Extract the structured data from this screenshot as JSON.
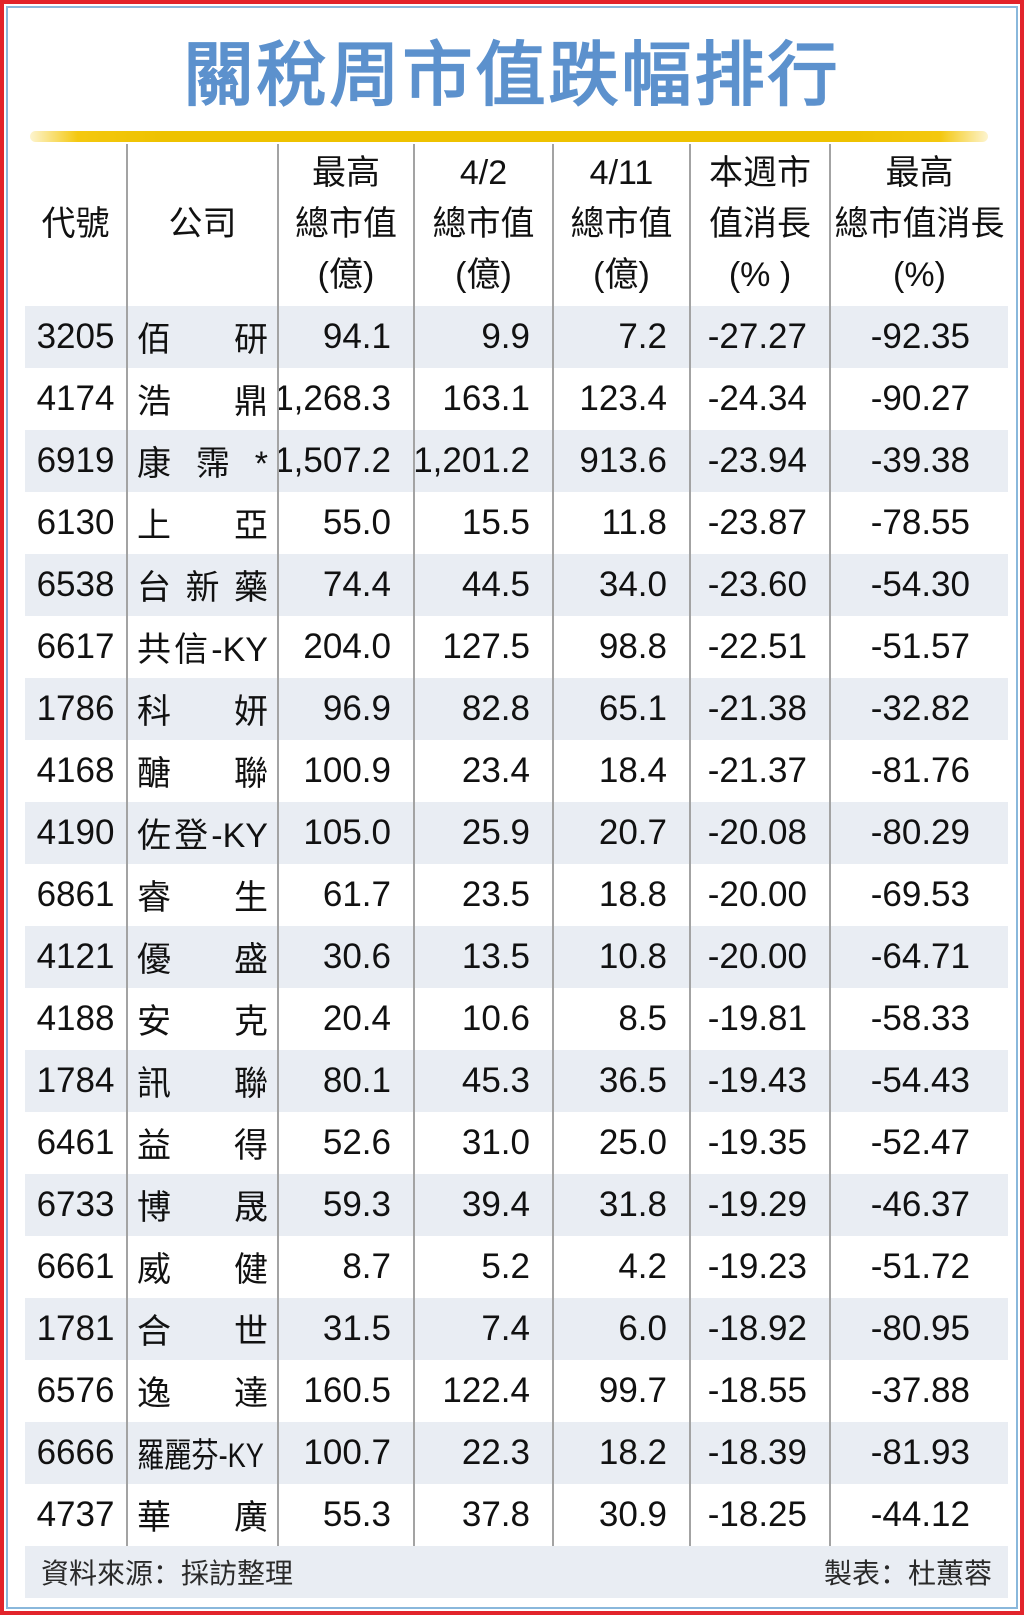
{
  "title": "關稅周市值跌幅排行",
  "colors": {
    "frame_red": "#e2242b",
    "frame_blue": "#8ab8dc",
    "title_blue": "#5c91cd",
    "gold": "#eec200",
    "row_shade": "#e9edf3",
    "divider": "#a3a3a3"
  },
  "chart_data": {
    "type": "table",
    "title": "關稅周市值跌幅排行",
    "columns": [
      {
        "id": "code",
        "lines": [
          "代號"
        ],
        "align": "al-c"
      },
      {
        "id": "company",
        "lines": [
          "公司"
        ],
        "align": "al-l"
      },
      {
        "id": "peak-cap",
        "lines": [
          "最高",
          "總市值",
          "(億)"
        ],
        "align": "al-r"
      },
      {
        "id": "cap-0402",
        "lines": [
          "4/2",
          "總市值",
          "(億)"
        ],
        "align": "al-r"
      },
      {
        "id": "cap-0411",
        "lines": [
          "4/11",
          "總市值",
          "(億)"
        ],
        "align": "al-r"
      },
      {
        "id": "week-change",
        "lines": [
          "本週市",
          "值消長",
          "(% )"
        ],
        "align": "al-r"
      },
      {
        "id": "peak-change",
        "lines": [
          "最高",
          "總市值消長",
          "(%)"
        ],
        "align": "al-r"
      }
    ],
    "rows": [
      [
        "3205",
        "佰研",
        "94.1",
        "9.9",
        "7.2",
        "-27.27",
        "-92.35"
      ],
      [
        "4174",
        "浩鼎",
        "1,268.3",
        "163.1",
        "123.4",
        "-24.34",
        "-90.27"
      ],
      [
        "6919",
        "康霈*",
        "1,507.2",
        "1,201.2",
        "913.6",
        "-23.94",
        "-39.38"
      ],
      [
        "6130",
        "上亞",
        "55.0",
        "15.5",
        "11.8",
        "-23.87",
        "-78.55"
      ],
      [
        "6538",
        "台新藥",
        "74.4",
        "44.5",
        "34.0",
        "-23.60",
        "-54.30"
      ],
      [
        "6617",
        "共信-KY",
        "204.0",
        "127.5",
        "98.8",
        "-22.51",
        "-51.57"
      ],
      [
        "1786",
        "科妍",
        "96.9",
        "82.8",
        "65.1",
        "-21.38",
        "-32.82"
      ],
      [
        "4168",
        "醣聯",
        "100.9",
        "23.4",
        "18.4",
        "-21.37",
        "-81.76"
      ],
      [
        "4190",
        "佐登-KY",
        "105.0",
        "25.9",
        "20.7",
        "-20.08",
        "-80.29"
      ],
      [
        "6861",
        "睿生",
        "61.7",
        "23.5",
        "18.8",
        "-20.00",
        "-69.53"
      ],
      [
        "4121",
        "優盛",
        "30.6",
        "13.5",
        "10.8",
        "-20.00",
        "-64.71"
      ],
      [
        "4188",
        "安克",
        "20.4",
        "10.6",
        "8.5",
        "-19.81",
        "-58.33"
      ],
      [
        "1784",
        "訊聯",
        "80.1",
        "45.3",
        "36.5",
        "-19.43",
        "-54.43"
      ],
      [
        "6461",
        "益得",
        "52.6",
        "31.0",
        "25.0",
        "-19.35",
        "-52.47"
      ],
      [
        "6733",
        "博晟",
        "59.3",
        "39.4",
        "31.8",
        "-19.29",
        "-46.37"
      ],
      [
        "6661",
        "威健",
        "8.7",
        "5.2",
        "4.2",
        "-19.23",
        "-51.72"
      ],
      [
        "1781",
        "合世",
        "31.5",
        "7.4",
        "6.0",
        "-18.92",
        "-80.95"
      ],
      [
        "6576",
        "逸達",
        "160.5",
        "122.4",
        "99.7",
        "-18.55",
        "-37.88"
      ],
      [
        "6666",
        "羅麗芬-KY",
        "100.7",
        "22.3",
        "18.2",
        "-18.39",
        "-81.93"
      ],
      [
        "4737",
        "華廣",
        "55.3",
        "37.8",
        "30.9",
        "-18.25",
        "-44.12"
      ]
    ]
  },
  "footer": {
    "source": "資料來源：採訪整理",
    "credit": "製表：杜蕙蓉"
  }
}
